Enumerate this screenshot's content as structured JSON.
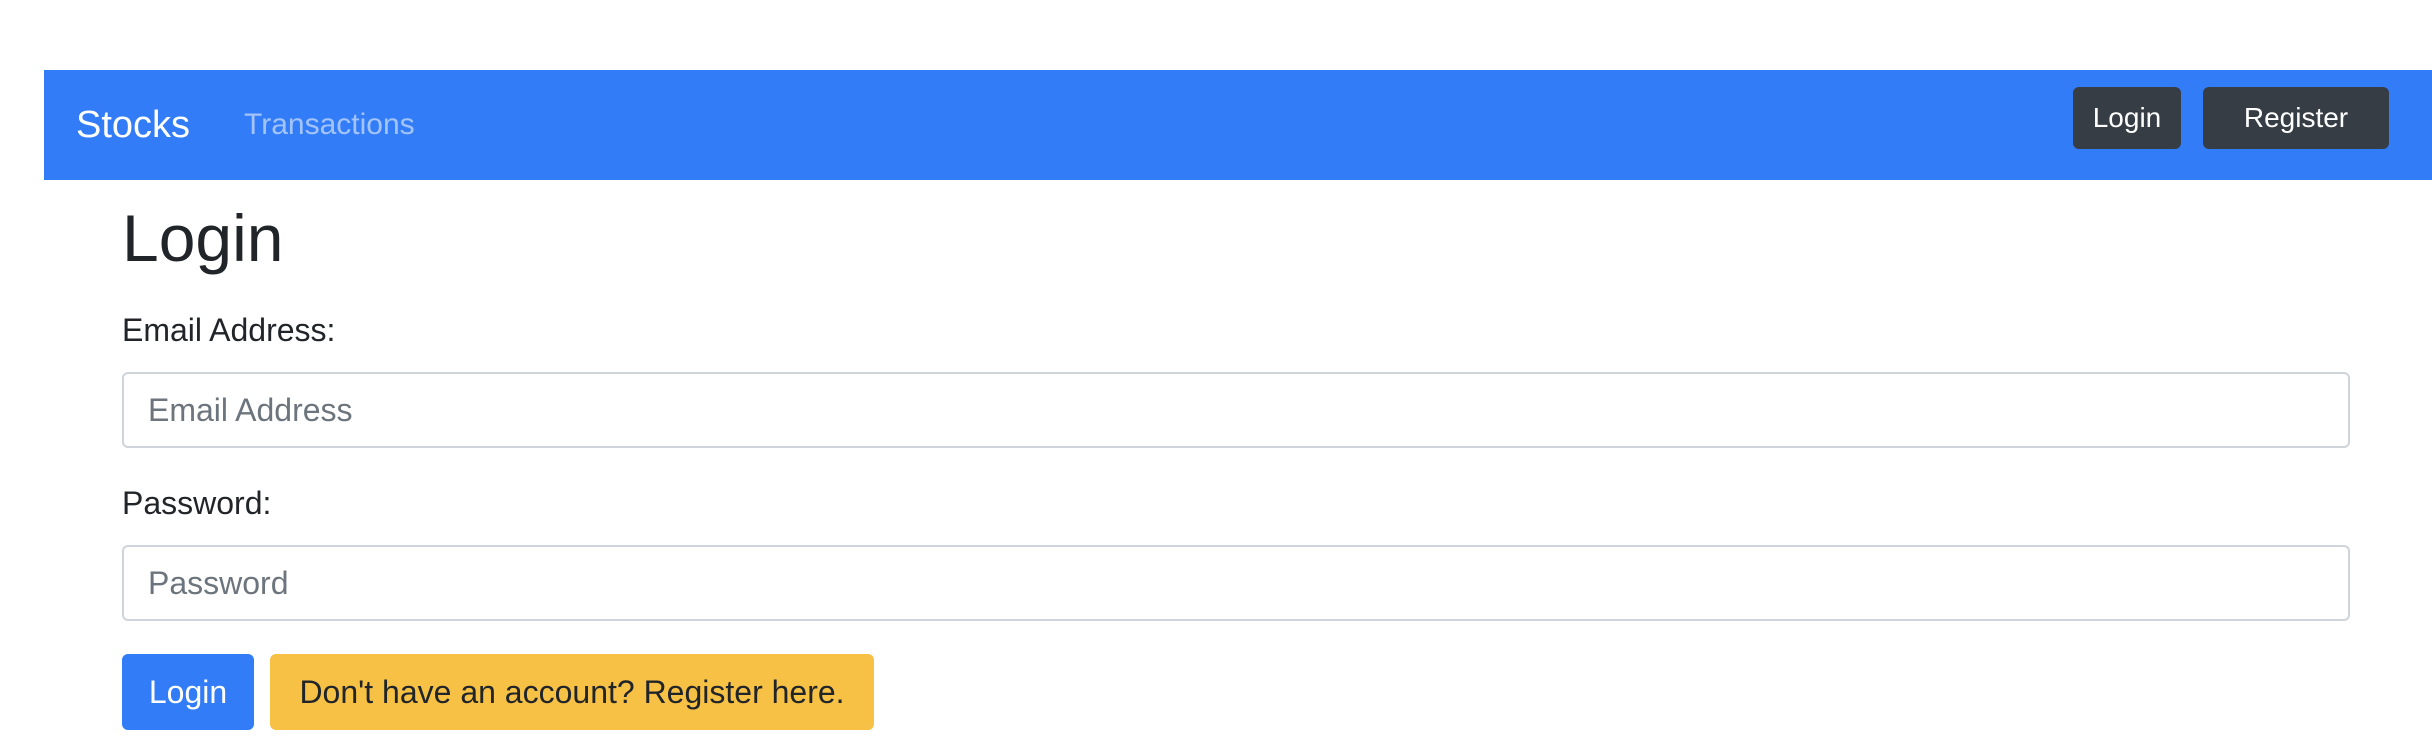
{
  "navbar": {
    "brand": "Stocks",
    "links": [
      {
        "label": "Transactions"
      }
    ],
    "buttons": {
      "login": "Login",
      "register": "Register"
    },
    "bg_color": "#337cf7"
  },
  "form": {
    "title": "Login",
    "email": {
      "label": "Email Address:",
      "placeholder": "Email Address",
      "value": ""
    },
    "password": {
      "label": "Password:",
      "placeholder": "Password",
      "value": ""
    },
    "submit_label": "Login",
    "register_prompt": "Don't have an account? Register here."
  },
  "colors": {
    "primary": "#337cf7",
    "dark": "#363d44",
    "warning": "#f6c145"
  }
}
